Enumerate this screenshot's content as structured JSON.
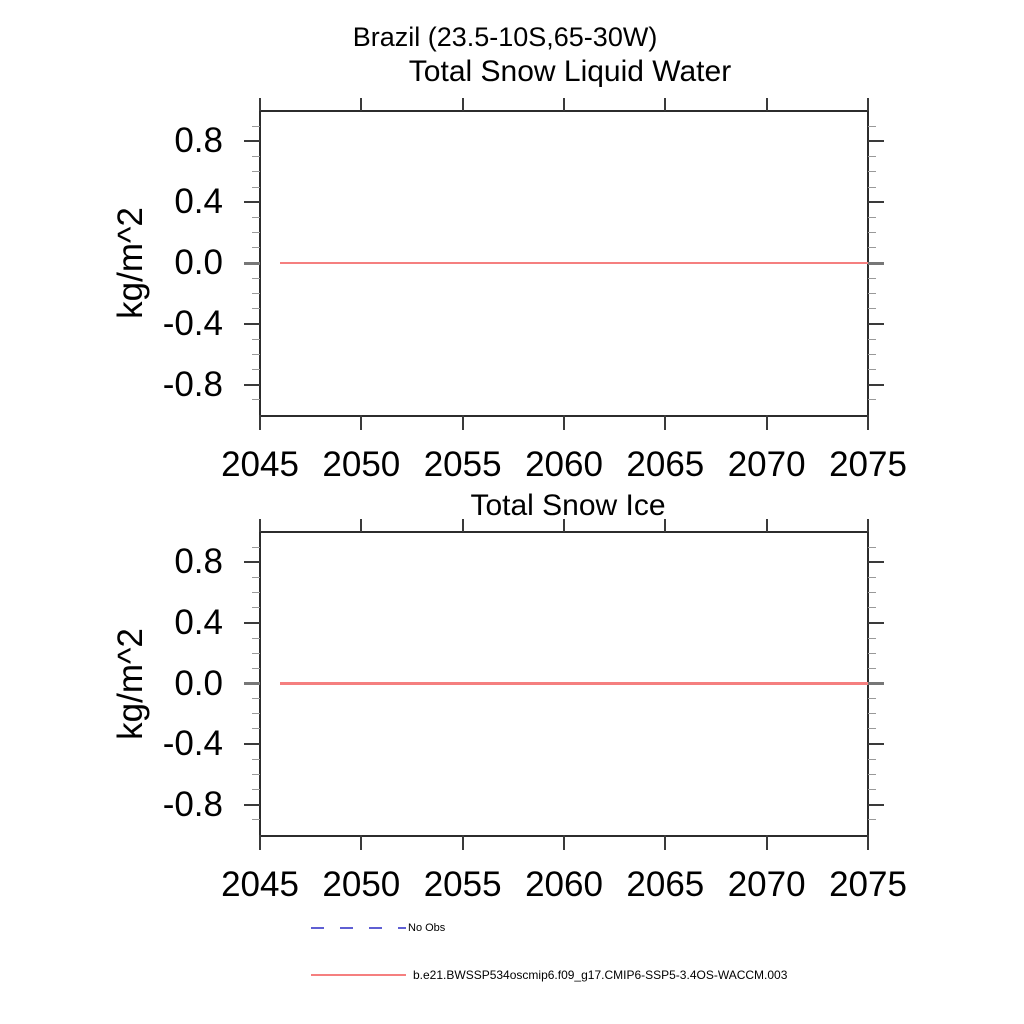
{
  "header": {
    "region_title": "Brazil (23.5-10S,65-30W)"
  },
  "axis": {
    "y_label": "kg/m^2",
    "x_tick_labels": [
      "2045",
      "2050",
      "2055",
      "2060",
      "2065",
      "2070",
      "2075"
    ],
    "y_tick_labels": [
      "0.8",
      "0.4",
      "0.0",
      "-0.4",
      "-0.8"
    ]
  },
  "chart_data": [
    {
      "type": "line",
      "title": "Total Snow Liquid Water",
      "xlabel": "",
      "ylabel": "kg/m^2",
      "xlim": [
        2045,
        2075
      ],
      "ylim": [
        -1.0,
        1.0
      ],
      "x_ticks": [
        2045,
        2050,
        2055,
        2060,
        2065,
        2070,
        2075
      ],
      "y_ticks": [
        0.8,
        0.4,
        0.0,
        -0.4,
        -0.8
      ],
      "y_minor_step": 0.1,
      "grid": false,
      "series": [
        {
          "name": "b.e21.BWSSP534oscmip6.f09_g17.CMIP6-SSP5-3.4OS-WACCM.003",
          "color": "#f57f7f",
          "x": [
            2046,
            2075
          ],
          "y": [
            0.0,
            0.0
          ]
        }
      ]
    },
    {
      "type": "line",
      "title": "Total Snow Ice",
      "xlabel": "",
      "ylabel": "kg/m^2",
      "xlim": [
        2045,
        2075
      ],
      "ylim": [
        -1.0,
        1.0
      ],
      "x_ticks": [
        2045,
        2050,
        2055,
        2060,
        2065,
        2070,
        2075
      ],
      "y_ticks": [
        0.8,
        0.4,
        0.0,
        -0.4,
        -0.8
      ],
      "y_minor_step": 0.1,
      "grid": false,
      "series": [
        {
          "name": "b.e21.BWSSP534oscmip6.f09_g17.CMIP6-SSP5-3.4OS-WACCM.003",
          "color": "#f57f7f",
          "x": [
            2046,
            2075
          ],
          "y": [
            0.0,
            0.0
          ]
        }
      ]
    }
  ],
  "legend": {
    "items": [
      {
        "label": "No Obs",
        "color": "#5f5fd3",
        "style": "dashed"
      },
      {
        "label": "b.e21.BWSSP534oscmip6.f09_g17.CMIP6-SSP5-3.4OS-WACCM.003",
        "color": "#f57f7f",
        "style": "solid"
      }
    ]
  }
}
